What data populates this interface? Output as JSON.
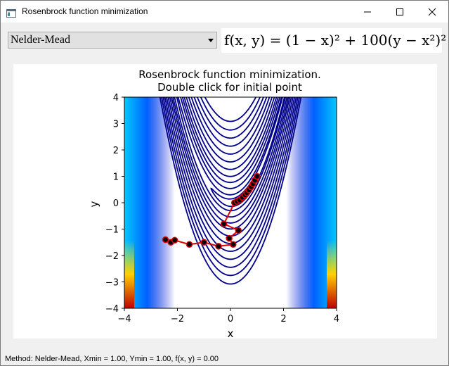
{
  "window": {
    "title": "Rosenbrock function minimization"
  },
  "controls": {
    "method_selected": "Nelder-Mead",
    "formula_text": "f(x, y) = (1 − x)² + 100(y − x²)²"
  },
  "status_bar": {
    "text": "Method: Nelder-Mead, Xmin = 1.00, Ymin = 1.00, f(x, y) = 0.00"
  },
  "chart_data": {
    "type": "contour",
    "title": "Rosenbrock function minimization.",
    "subtitle": "Double click for initial point",
    "xlabel": "x",
    "ylabel": "y",
    "xlim": [
      -4,
      4
    ],
    "ylim": [
      -4,
      4
    ],
    "x_ticks": [
      "−4",
      "−2",
      "0",
      "2",
      "4"
    ],
    "y_ticks": [
      "4",
      "3",
      "2",
      "1",
      "0",
      "−1",
      "−2",
      "−3",
      "−4"
    ],
    "contour_color": "#00008b",
    "path_color": "#e00000",
    "marker_color": "#000000",
    "contour_levels": [
      3,
      10,
      30,
      60,
      100,
      160,
      240,
      340,
      460,
      600,
      760,
      950
    ],
    "path": {
      "x": [
        -2.45,
        -2.25,
        -2.1,
        -1.55,
        -1.0,
        -0.45,
        0.1,
        -0.05,
        0.3,
        -0.25,
        0.15,
        0.25,
        0.35,
        0.45,
        0.55,
        0.62,
        0.7,
        0.78,
        0.85,
        0.92,
        1.0
      ],
      "y": [
        -1.4,
        -1.5,
        -1.42,
        -1.58,
        -1.5,
        -1.65,
        -1.58,
        -1.35,
        -1.05,
        -0.8,
        0.0,
        0.05,
        0.1,
        0.2,
        0.3,
        0.38,
        0.48,
        0.6,
        0.72,
        0.85,
        1.0
      ]
    }
  }
}
